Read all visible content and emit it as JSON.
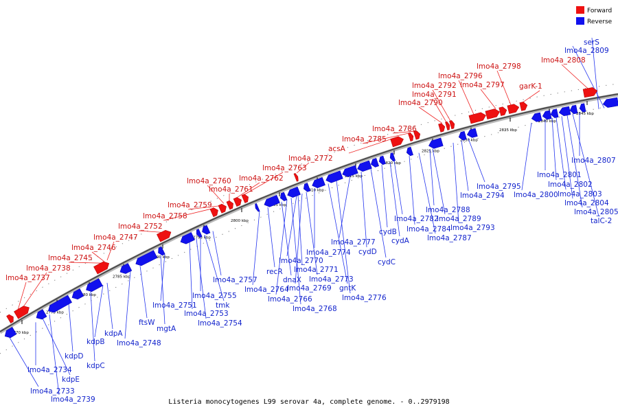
{
  "legend": {
    "forward": {
      "label": "Forward",
      "color": "#ee1111"
    },
    "reverse": {
      "label": "Reverse",
      "color": "#1111ee"
    }
  },
  "caption": "Listeria monocytogenes L99 serovar 4a, complete genome. - 0..2979198",
  "axis_ticks": [
    "2770 kbp",
    "2775 kbp",
    "2780 kbp",
    "2785 kbp",
    "2790 kbp",
    "2795 kbp",
    "2800 kbp",
    "2805 kbp",
    "2810 kbp",
    "2815 kbp",
    "2820 kbp",
    "2825 kbp",
    "2830 kbp",
    "2835 kbp",
    "2840 kbp",
    "2845 kbp"
  ],
  "forward_labels": [
    "lmo4a_2737",
    "lmo4a_2738",
    "lmo4a_2745",
    "lmo4a_2746",
    "lmo4a_2747",
    "lmo4a_2752",
    "lmo4a_2758",
    "lmo4a_2759",
    "lmo4a_2760",
    "lmo4a_2761",
    "lmo4a_2762",
    "lmo4a_2763",
    "lmo4a_2772",
    "acsA",
    "lmo4a_2785",
    "lmo4a_2786",
    "lmo4a_2790",
    "lmo4a_2791",
    "lmo4a_2792",
    "lmo4a_2796",
    "lmo4a_2797",
    "lmo4a_2798",
    "garK-1",
    "lmo4a_2808"
  ],
  "reverse_labels": [
    "lmo4a_2734",
    "kdpE",
    "lmo4a_2733",
    "lmo4a_2739",
    "kdpD",
    "kdpC",
    "kdpB",
    "kdpA",
    "lmo4a_2748",
    "ftsW",
    "mgtA",
    "lmo4a_2751",
    "lmo4a_2753",
    "lmo4a_2754",
    "lmo4a_2755",
    "tmk",
    "lmo4a_2757",
    "lmo4a_2764",
    "recR",
    "dnaX",
    "lmo4a_2766",
    "lmo4a_2768",
    "lmo4a_2770",
    "lmo4a_2771",
    "lmo4a_2769",
    "lmo4a_2773",
    "lmo4a_2774",
    "gntK",
    "lmo4a_2776",
    "lmo4a_2777",
    "cydD",
    "cydC",
    "cydB",
    "cydA",
    "lmo4a_2782",
    "lmo4a_2784",
    "lmo4a_2787",
    "lmo4a_2788",
    "lmo4a_2789",
    "lmo4a_2793",
    "lmo4a_2794",
    "lmo4a_2795",
    "lmo4a_2800",
    "lmo4a_2801",
    "lmo4a_2802",
    "lmo4a_2803",
    "lmo4a_2804",
    "lmo4a_2805",
    "talC-2",
    "lmo4a_2807",
    "serS",
    "lmo4a_2809"
  ]
}
